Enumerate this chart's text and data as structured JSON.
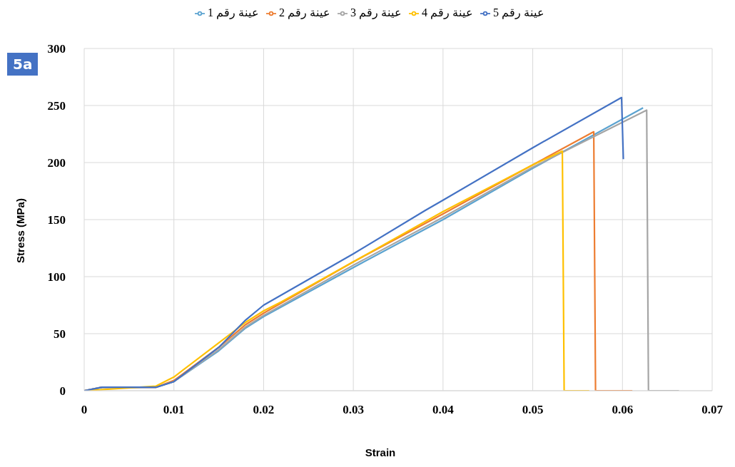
{
  "chart_data": {
    "type": "line",
    "xlabel": "Strain",
    "ylabel": "Stress (MPa)",
    "annotations": [
      "5a"
    ],
    "xlim": [
      0,
      0.07
    ],
    "xticks": [
      0,
      0.01,
      0.02,
      0.03,
      0.04,
      0.05,
      0.06,
      0.07
    ],
    "ylim": [
      0,
      300
    ],
    "yticks": [
      0,
      50,
      100,
      150,
      200,
      250,
      300
    ],
    "grid": true,
    "legend": "top",
    "marker": "none",
    "line_style": "solid",
    "series": [
      {
        "name": "عينة رقم 1",
        "color": "#5ba3d0",
        "x": [
          0,
          0.002,
          0.008,
          0.01,
          0.015,
          0.018,
          0.02,
          0.03,
          0.04,
          0.05,
          0.0623
        ],
        "values": [
          0,
          3,
          3,
          8,
          35,
          55,
          65,
          108,
          150,
          195,
          248
        ]
      },
      {
        "name": "عينة رقم 2",
        "color": "#ed7d31",
        "x": [
          0,
          0.002,
          0.008,
          0.01,
          0.015,
          0.018,
          0.02,
          0.03,
          0.04,
          0.05,
          0.0568,
          0.057,
          0.0611
        ],
        "values": [
          0,
          3,
          3,
          9,
          38,
          58,
          68,
          113,
          155,
          198,
          227,
          0,
          0
        ]
      },
      {
        "name": "عينة رقم 3",
        "color": "#a5a5a5",
        "x": [
          0,
          0.002,
          0.008,
          0.01,
          0.015,
          0.018,
          0.02,
          0.03,
          0.04,
          0.05,
          0.0627,
          0.0629,
          0.0663
        ],
        "values": [
          0,
          3,
          3,
          8,
          36,
          56,
          66,
          110,
          152,
          196,
          246,
          0,
          0
        ]
      },
      {
        "name": "عينة رقم 4",
        "color": "#ffc000",
        "x": [
          0,
          0.008,
          0.01,
          0.015,
          0.018,
          0.02,
          0.022,
          0.03,
          0.04,
          0.05,
          0.0533,
          0.0535,
          0.0563
        ],
        "values": [
          0,
          4,
          12,
          42,
          60,
          70,
          78,
          113,
          157,
          198,
          210,
          0,
          0
        ]
      },
      {
        "name": "عينة رقم 5",
        "color": "#4472c4",
        "x": [
          0,
          0.002,
          0.008,
          0.01,
          0.015,
          0.018,
          0.02,
          0.03,
          0.038,
          0.04,
          0.05,
          0.0599,
          0.0601
        ],
        "values": [
          0,
          3,
          3,
          8,
          38,
          62,
          75,
          120,
          158,
          167,
          213,
          257,
          203
        ]
      }
    ]
  }
}
